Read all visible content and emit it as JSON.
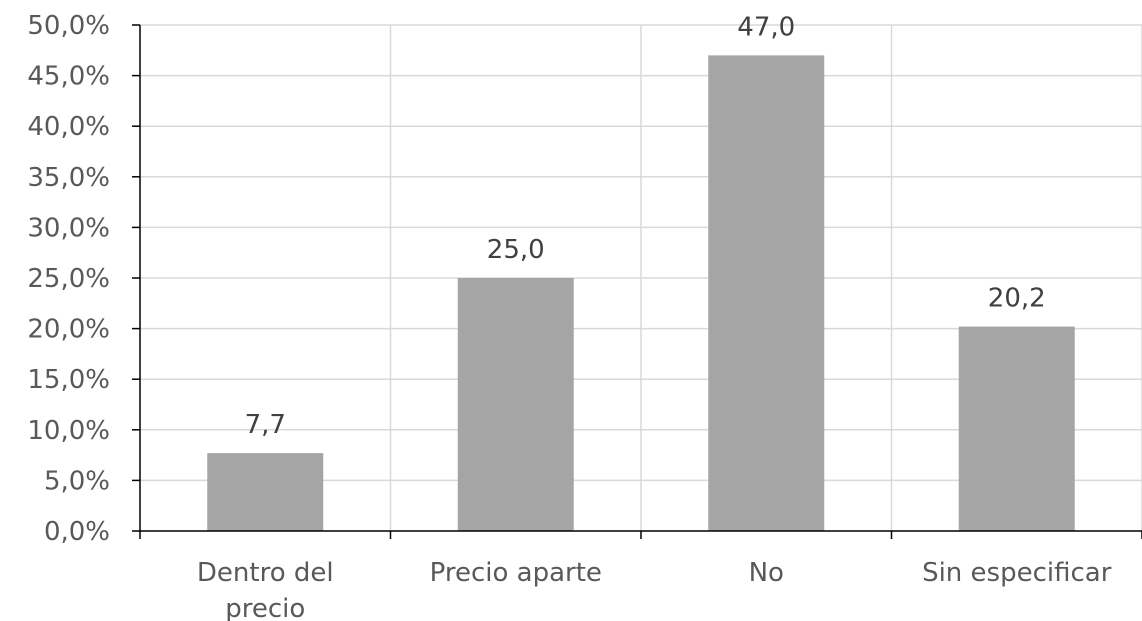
{
  "chart_data": {
    "type": "bar",
    "categories": [
      [
        "Dentro del",
        "precio"
      ],
      [
        "Precio aparte"
      ],
      [
        "No"
      ],
      [
        "Sin especificar"
      ]
    ],
    "values": [
      7.7,
      25.0,
      47.0,
      20.2
    ],
    "data_labels": [
      "7,7",
      "25,0",
      "47,0",
      "20,2"
    ],
    "ylim": [
      0,
      50
    ],
    "y_ticks": [
      {
        "value": 0,
        "label": "0,0%"
      },
      {
        "value": 5,
        "label": "5,0%"
      },
      {
        "value": 10,
        "label": "10,0%"
      },
      {
        "value": 15,
        "label": "15,0%"
      },
      {
        "value": 20,
        "label": "20,0%"
      },
      {
        "value": 25,
        "label": "25,0%"
      },
      {
        "value": 30,
        "label": "30,0%"
      },
      {
        "value": 35,
        "label": "35,0%"
      },
      {
        "value": 40,
        "label": "40,0%"
      },
      {
        "value": 45,
        "label": "45,0%"
      },
      {
        "value": 50,
        "label": "50,0%"
      }
    ],
    "grid": true,
    "legend": "none",
    "colors": {
      "bar": "#a5a5a5",
      "grid": "#d9d9d9",
      "axis": "#000000",
      "tick_text": "#595959",
      "data_label_text": "#404040"
    }
  }
}
